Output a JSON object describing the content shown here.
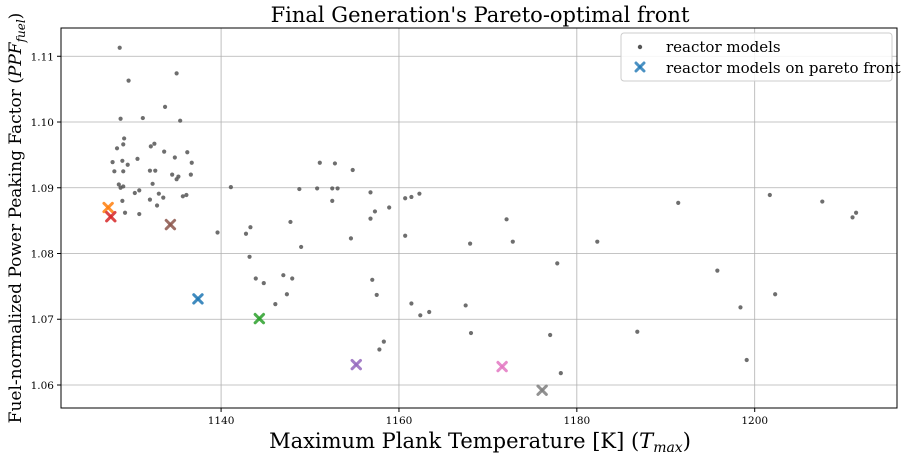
{
  "chart_data": {
    "type": "scatter",
    "title": "Final Generation's Pareto-optimal front",
    "xlabel": "Maximum Plank Temperature [K] (T_max)",
    "ylabel": "Fuel-normalized Power Peaking Factor (PPF_fuel)",
    "xlim": [
      1122,
      1216
    ],
    "ylim": [
      1.0565,
      1.1143
    ],
    "xticks": [
      1140,
      1160,
      1180,
      1200
    ],
    "yticks": [
      1.06,
      1.07,
      1.08,
      1.09,
      1.1,
      1.11
    ],
    "xtick_labels": [
      "1140",
      "1160",
      "1180",
      "1200"
    ],
    "ytick_labels": [
      "1.06",
      "1.07",
      "1.08",
      "1.09",
      "1.10",
      "1.11"
    ],
    "grid": true,
    "legend": {
      "placement": "top-right",
      "entries": [
        "reactor models",
        "reactor models on pareto front"
      ]
    },
    "series": [
      {
        "name": "reactor models",
        "marker": "dot",
        "color": "#555555",
        "points": [
          [
            1128.6,
            1.1113
          ],
          [
            1129.6,
            1.1063
          ],
          [
            1135.0,
            1.1074
          ],
          [
            1133.7,
            1.1023
          ],
          [
            1128.7,
            1.1005
          ],
          [
            1131.2,
            1.1006
          ],
          [
            1135.4,
            1.1002
          ],
          [
            1129.1,
            1.0975
          ],
          [
            1128.3,
            1.096
          ],
          [
            1129.0,
            1.0966
          ],
          [
            1132.5,
            1.0967
          ],
          [
            1132.1,
            1.0963
          ],
          [
            1133.6,
            1.0955
          ],
          [
            1134.8,
            1.0946
          ],
          [
            1136.2,
            1.0954
          ],
          [
            1127.8,
            1.0939
          ],
          [
            1128.9,
            1.0941
          ],
          [
            1129.5,
            1.0935
          ],
          [
            1130.6,
            1.0944
          ],
          [
            1132.0,
            1.0926
          ],
          [
            1132.6,
            1.0926
          ],
          [
            1134.5,
            1.092
          ],
          [
            1135.0,
            1.0913
          ],
          [
            1135.2,
            1.0917
          ],
          [
            1136.7,
            1.0938
          ],
          [
            1136.6,
            1.092
          ],
          [
            1128.0,
            1.0925
          ],
          [
            1129.0,
            1.0925
          ],
          [
            1128.5,
            1.0905
          ],
          [
            1128.7,
            1.09
          ],
          [
            1129.0,
            1.0902
          ],
          [
            1130.3,
            1.0892
          ],
          [
            1130.8,
            1.0896
          ],
          [
            1132.3,
            1.0906
          ],
          [
            1133.0,
            1.0891
          ],
          [
            1133.5,
            1.0885
          ],
          [
            1135.7,
            1.0887
          ],
          [
            1136.1,
            1.0889
          ],
          [
            1128.9,
            1.088
          ],
          [
            1130.8,
            1.086
          ],
          [
            1132.0,
            1.0882
          ],
          [
            1132.8,
            1.0873
          ],
          [
            1129.2,
            1.0862
          ],
          [
            1141.1,
            1.0901
          ],
          [
            1139.6,
            1.0832
          ],
          [
            1142.8,
            1.083
          ],
          [
            1143.3,
            1.084
          ],
          [
            1143.2,
            1.0795
          ],
          [
            1143.9,
            1.0762
          ],
          [
            1144.8,
            1.0755
          ],
          [
            1146.1,
            1.0723
          ],
          [
            1147.0,
            1.0767
          ],
          [
            1147.4,
            1.0738
          ],
          [
            1148.0,
            1.0762
          ],
          [
            1147.8,
            1.0848
          ],
          [
            1148.8,
            1.0898
          ],
          [
            1149.0,
            1.081
          ],
          [
            1151.1,
            1.0938
          ],
          [
            1150.8,
            1.0899
          ],
          [
            1152.5,
            1.0899
          ],
          [
            1152.8,
            1.0937
          ],
          [
            1152.5,
            1.088
          ],
          [
            1153.1,
            1.0899
          ],
          [
            1154.8,
            1.0927
          ],
          [
            1154.6,
            1.0823
          ],
          [
            1156.8,
            1.0893
          ],
          [
            1156.8,
            1.0853
          ],
          [
            1157.3,
            1.0864
          ],
          [
            1158.9,
            1.087
          ],
          [
            1157.0,
            1.076
          ],
          [
            1157.5,
            1.0737
          ],
          [
            1157.8,
            1.0654
          ],
          [
            1158.3,
            1.0666
          ],
          [
            1160.7,
            1.0884
          ],
          [
            1161.4,
            1.0886
          ],
          [
            1162.3,
            1.0891
          ],
          [
            1160.7,
            1.0827
          ],
          [
            1161.4,
            1.0724
          ],
          [
            1162.4,
            1.0706
          ],
          [
            1163.4,
            1.0711
          ],
          [
            1168.0,
            1.0815
          ],
          [
            1167.5,
            1.0721
          ],
          [
            1168.1,
            1.0679
          ],
          [
            1172.1,
            1.0852
          ],
          [
            1172.8,
            1.0818
          ],
          [
            1177.0,
            1.0676
          ],
          [
            1177.8,
            1.0785
          ],
          [
            1178.2,
            1.0618
          ],
          [
            1182.3,
            1.0818
          ],
          [
            1186.8,
            1.0681
          ],
          [
            1191.4,
            1.0877
          ],
          [
            1195.8,
            1.0774
          ],
          [
            1198.4,
            1.0718
          ],
          [
            1199.1,
            1.0638
          ],
          [
            1201.7,
            1.0889
          ],
          [
            1202.3,
            1.0738
          ],
          [
            1207.6,
            1.0879
          ],
          [
            1211.4,
            1.0862
          ],
          [
            1211.0,
            1.0855
          ]
        ]
      },
      {
        "name": "reactor models on pareto front",
        "marker": "x",
        "points": [
          [
            1127.3,
            1.087
          ],
          [
            1127.6,
            1.0856
          ],
          [
            1134.3,
            1.0844
          ],
          [
            1137.4,
            1.0731
          ],
          [
            1144.3,
            1.0701
          ],
          [
            1155.2,
            1.0631
          ],
          [
            1171.6,
            1.0628
          ],
          [
            1176.1,
            1.0592
          ]
        ],
        "colors": [
          "#ff7f0e",
          "#d62728",
          "#8c564b",
          "#1f77b4",
          "#2ca02c",
          "#9467bd",
          "#e377c2",
          "#7f7f7f"
        ]
      }
    ]
  }
}
